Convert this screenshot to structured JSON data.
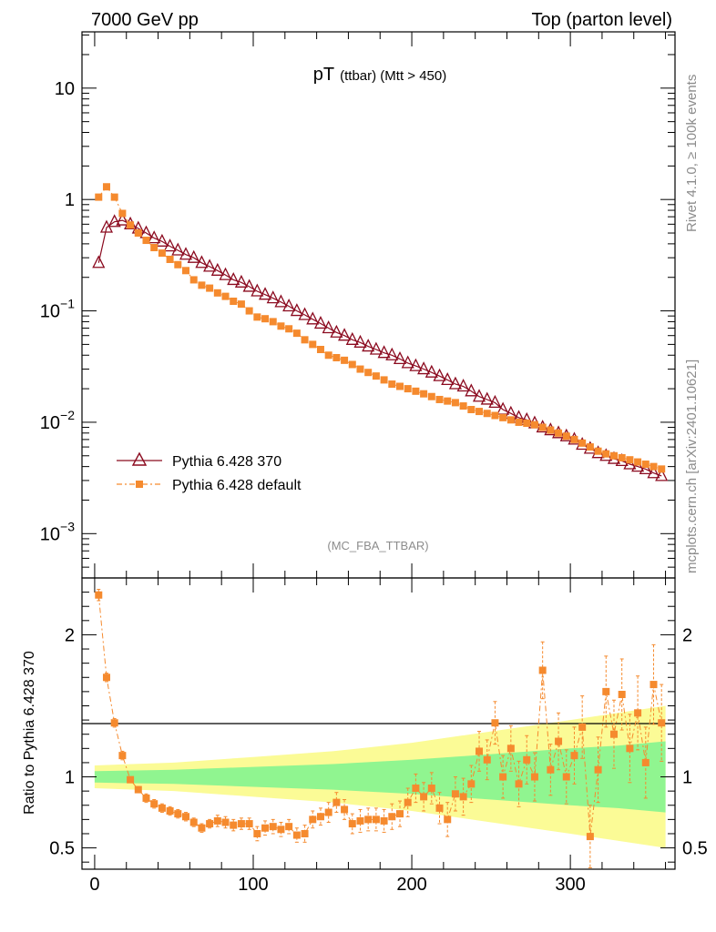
{
  "header": {
    "left": "7000 GeV pp",
    "right": "Top (parton level)"
  },
  "side_labels": {
    "rivet": "Rivet 4.1.0, ≥ 100k events",
    "mcplots": "mcplots.cern.ch [arXiv:2401.10621]"
  },
  "colors": {
    "series1": "#8b0a1f",
    "series2": "#f58a2e",
    "band_inner": "#90f590",
    "band_outer": "#fbfb96"
  },
  "chart_data": [
    {
      "type": "line",
      "panel": "main",
      "title_main": "pT",
      "title_sub": "(ttbar) (Mtt > 450)",
      "watermark": "(MC_FBA_TTBAR)",
      "yscale": "log",
      "xlim": [
        -8,
        366
      ],
      "ylim": [
        0.0004,
        32
      ],
      "yticks": [
        {
          "value": 10,
          "label": "10"
        },
        {
          "value": 1,
          "label": "1"
        },
        {
          "value": 0.1,
          "base": "10",
          "exp": "−1"
        },
        {
          "value": 0.01,
          "base": "10",
          "exp": "−2"
        },
        {
          "value": 0.001,
          "base": "10",
          "exp": "−3"
        }
      ],
      "legend_position": "lower-left",
      "series": [
        {
          "name": "Pythia 6.428 370",
          "marker": "open-triangle",
          "x": [
            2.5,
            7.5,
            12.5,
            17.5,
            22.5,
            27.5,
            32.5,
            37.5,
            42.5,
            47.5,
            52.5,
            57.5,
            62.5,
            67.5,
            72.5,
            77.5,
            82.5,
            87.5,
            92.5,
            97.5,
            102.5,
            107.5,
            112.5,
            117.5,
            122.5,
            127.5,
            132.5,
            137.5,
            142.5,
            147.5,
            152.5,
            157.5,
            162.5,
            167.5,
            172.5,
            177.5,
            182.5,
            187.5,
            192.5,
            197.5,
            202.5,
            207.5,
            212.5,
            217.5,
            222.5,
            227.5,
            232.5,
            237.5,
            242.5,
            247.5,
            252.5,
            257.5,
            262.5,
            267.5,
            272.5,
            277.5,
            282.5,
            287.5,
            292.5,
            297.5,
            302.5,
            307.5,
            312.5,
            317.5,
            322.5,
            327.5,
            332.5,
            337.5,
            342.5,
            347.5,
            352.5,
            357.5
          ],
          "y": [
            0.27,
            0.56,
            0.63,
            0.65,
            0.6,
            0.55,
            0.5,
            0.45,
            0.42,
            0.38,
            0.35,
            0.32,
            0.3,
            0.27,
            0.25,
            0.23,
            0.21,
            0.19,
            0.18,
            0.165,
            0.15,
            0.14,
            0.13,
            0.12,
            0.11,
            0.1,
            0.092,
            0.084,
            0.077,
            0.07,
            0.064,
            0.06,
            0.055,
            0.052,
            0.048,
            0.045,
            0.042,
            0.04,
            0.037,
            0.034,
            0.032,
            0.03,
            0.028,
            0.026,
            0.024,
            0.022,
            0.021,
            0.019,
            0.017,
            0.016,
            0.015,
            0.013,
            0.012,
            0.011,
            0.0105,
            0.0098,
            0.009,
            0.0085,
            0.008,
            0.0075,
            0.007,
            0.0063,
            0.0058,
            0.0053,
            0.005,
            0.0047,
            0.0045,
            0.0042,
            0.004,
            0.0038,
            0.0035,
            0.0033
          ]
        },
        {
          "name": "Pythia 6.428 default",
          "marker": "filled-square",
          "x": [
            2.5,
            7.5,
            12.5,
            17.5,
            22.5,
            27.5,
            32.5,
            37.5,
            42.5,
            47.5,
            52.5,
            57.5,
            62.5,
            67.5,
            72.5,
            77.5,
            82.5,
            87.5,
            92.5,
            97.5,
            102.5,
            107.5,
            112.5,
            117.5,
            122.5,
            127.5,
            132.5,
            137.5,
            142.5,
            147.5,
            152.5,
            157.5,
            162.5,
            167.5,
            172.5,
            177.5,
            182.5,
            187.5,
            192.5,
            197.5,
            202.5,
            207.5,
            212.5,
            217.5,
            222.5,
            227.5,
            232.5,
            237.5,
            242.5,
            247.5,
            252.5,
            257.5,
            262.5,
            267.5,
            272.5,
            277.5,
            282.5,
            287.5,
            292.5,
            297.5,
            302.5,
            307.5,
            312.5,
            317.5,
            322.5,
            327.5,
            332.5,
            337.5,
            342.5,
            347.5,
            352.5,
            357.5
          ],
          "y": [
            1.05,
            1.3,
            1.05,
            0.75,
            0.59,
            0.5,
            0.43,
            0.37,
            0.33,
            0.29,
            0.26,
            0.23,
            0.19,
            0.17,
            0.16,
            0.145,
            0.135,
            0.122,
            0.115,
            0.1,
            0.088,
            0.085,
            0.08,
            0.073,
            0.069,
            0.063,
            0.055,
            0.05,
            0.045,
            0.04,
            0.038,
            0.036,
            0.033,
            0.03,
            0.028,
            0.026,
            0.024,
            0.022,
            0.021,
            0.02,
            0.019,
            0.018,
            0.017,
            0.016,
            0.0155,
            0.015,
            0.014,
            0.013,
            0.0125,
            0.012,
            0.0115,
            0.011,
            0.0105,
            0.01,
            0.0098,
            0.0095,
            0.009,
            0.0085,
            0.008,
            0.0075,
            0.007,
            0.0065,
            0.006,
            0.0055,
            0.0052,
            0.005,
            0.0048,
            0.0046,
            0.0044,
            0.0042,
            0.004,
            0.0038
          ]
        }
      ]
    },
    {
      "type": "line",
      "panel": "ratio",
      "ylabel": "Ratio to Pythia 6.428 370",
      "xlim": [
        -8,
        366
      ],
      "ylim": [
        0.35,
        2.4
      ],
      "xticks": [
        0,
        100,
        200,
        300
      ],
      "yticks": [
        0.5,
        1,
        2
      ],
      "series": [
        {
          "name": "Pythia 6.428 default / Pythia 6.428 370",
          "x": [
            2.5,
            7.5,
            12.5,
            17.5,
            22.5,
            27.5,
            32.5,
            37.5,
            42.5,
            47.5,
            52.5,
            57.5,
            62.5,
            67.5,
            72.5,
            77.5,
            82.5,
            87.5,
            92.5,
            97.5,
            102.5,
            107.5,
            112.5,
            117.5,
            122.5,
            127.5,
            132.5,
            137.5,
            142.5,
            147.5,
            152.5,
            157.5,
            162.5,
            167.5,
            172.5,
            177.5,
            182.5,
            187.5,
            192.5,
            197.5,
            202.5,
            207.5,
            212.5,
            217.5,
            222.5,
            227.5,
            232.5,
            237.5,
            242.5,
            247.5,
            252.5,
            257.5,
            262.5,
            267.5,
            272.5,
            277.5,
            282.5,
            287.5,
            292.5,
            297.5,
            302.5,
            307.5,
            312.5,
            317.5,
            322.5,
            327.5,
            332.5,
            337.5,
            342.5,
            347.5,
            352.5,
            357.5
          ],
          "y": [
            2.28,
            1.7,
            1.38,
            1.15,
            0.98,
            0.91,
            0.85,
            0.81,
            0.78,
            0.76,
            0.74,
            0.72,
            0.68,
            0.64,
            0.67,
            0.69,
            0.68,
            0.66,
            0.67,
            0.67,
            0.6,
            0.64,
            0.65,
            0.63,
            0.65,
            0.59,
            0.6,
            0.7,
            0.72,
            0.75,
            0.82,
            0.77,
            0.67,
            0.69,
            0.7,
            0.7,
            0.69,
            0.72,
            0.74,
            0.82,
            0.92,
            0.86,
            0.92,
            0.78,
            0.7,
            0.88,
            0.86,
            0.95,
            1.18,
            1.12,
            1.38,
            1.0,
            1.2,
            0.95,
            1.12,
            1.0,
            1.75,
            1.05,
            1.25,
            1.0,
            1.15,
            1.35,
            0.58,
            1.05,
            1.6,
            1.3,
            1.58,
            1.2,
            1.45,
            1.1,
            1.65,
            1.38
          ],
          "err": [
            0.04,
            0.03,
            0.03,
            0.03,
            0.02,
            0.02,
            0.03,
            0.03,
            0.03,
            0.03,
            0.03,
            0.03,
            0.03,
            0.03,
            0.03,
            0.04,
            0.04,
            0.04,
            0.04,
            0.04,
            0.05,
            0.05,
            0.05,
            0.05,
            0.05,
            0.05,
            0.06,
            0.06,
            0.06,
            0.07,
            0.07,
            0.07,
            0.07,
            0.08,
            0.08,
            0.08,
            0.08,
            0.09,
            0.09,
            0.1,
            0.1,
            0.1,
            0.11,
            0.11,
            0.12,
            0.12,
            0.13,
            0.13,
            0.14,
            0.14,
            0.15,
            0.15,
            0.16,
            0.16,
            0.17,
            0.17,
            0.2,
            0.18,
            0.2,
            0.19,
            0.2,
            0.22,
            0.22,
            0.23,
            0.25,
            0.24,
            0.25,
            0.24,
            0.26,
            0.25,
            0.28,
            0.27
          ]
        }
      ],
      "band": {
        "x": [
          0,
          50,
          100,
          150,
          200,
          250,
          300,
          330,
          360
        ],
        "inner": [
          0.04,
          0.05,
          0.07,
          0.09,
          0.12,
          0.16,
          0.2,
          0.22,
          0.25
        ],
        "outer": [
          0.08,
          0.1,
          0.14,
          0.18,
          0.24,
          0.32,
          0.4,
          0.45,
          0.5
        ]
      }
    }
  ]
}
